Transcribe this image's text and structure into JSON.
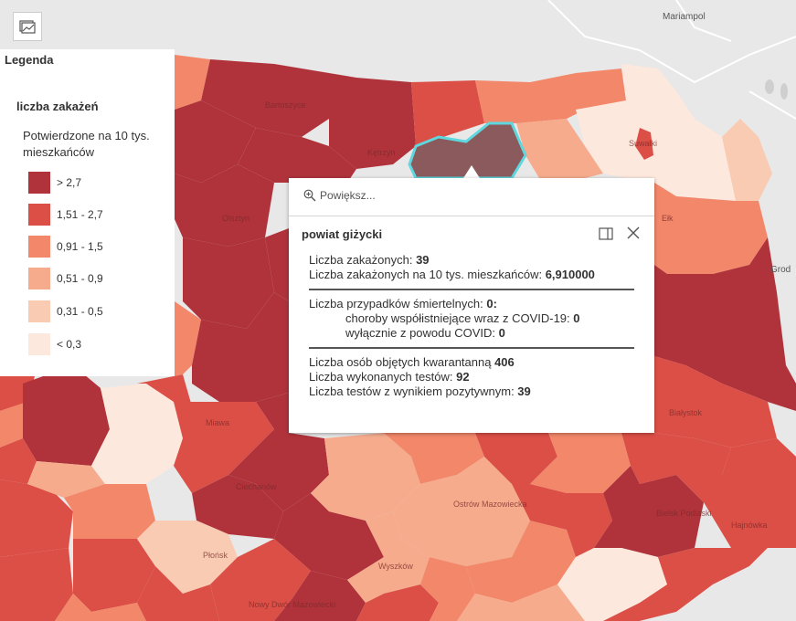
{
  "basemap": {
    "place_labels": [
      "Mariampol",
      "Grod"
    ]
  },
  "map": {
    "colors": {
      "class1": "#b0333b",
      "class2": "#dc4f46",
      "class3": "#f2876a",
      "class4": "#f6ab8c",
      "class5": "#f9cbb3",
      "class6": "#fde8dd",
      "highlight": "#5fd7de",
      "basemap": "#e8e8e8"
    },
    "region_labels": [
      "Bartoszyce",
      "Kętrzyn",
      "Olsztyn",
      "Ełk",
      "Miawa",
      "Ciechanów",
      "Ostrów Mazowiecka",
      "Bielsk Podlaski",
      "Hajnówka",
      "Płońsk",
      "Wyszków",
      "Nowy Dwór Mazowiecki",
      "Białystok",
      "Suwałki"
    ]
  },
  "legend": {
    "title": "Legenda",
    "layer": "liczba zakażeń",
    "field": "Potwierdzone na 10 tys. mieszkańców",
    "classes": [
      {
        "label": "> 2,7",
        "color": "#b0333b"
      },
      {
        "label": "1,51 - 2,7",
        "color": "#dc4f46"
      },
      {
        "label": "0,91 - 1,5",
        "color": "#f2876a"
      },
      {
        "label": "0,51 - 0,9",
        "color": "#f6ab8c"
      },
      {
        "label": "0,31 - 0,5",
        "color": "#f9cbb3"
      },
      {
        "label": "< 0,3",
        "color": "#fde8dd"
      }
    ]
  },
  "popup": {
    "zoom_label": "Powiększ...",
    "title": "powiat giżycki",
    "infections_label": "Liczba zakażonych: ",
    "infections_value": "39",
    "per10k_label": "Liczba zakażonych na 10 tys. mieszkańców: ",
    "per10k_value": "6,910000",
    "deaths_label": "Liczba przypadków śmiertelnych: ",
    "deaths_value": "0:",
    "comorbid_label": "choroby współistniejące wraz z COVID-19: ",
    "comorbid_value": "0",
    "covid_only_label": "wyłącznie z powodu COVID: ",
    "covid_only_value": "0",
    "quarantine_label": "Liczba osób objętych kwarantanną ",
    "quarantine_value": "406",
    "tests_label": "Liczba wykonanych testów: ",
    "tests_value": "92",
    "positive_label": "Liczba testów z wynikiem pozytywnym: ",
    "positive_value": "39"
  }
}
